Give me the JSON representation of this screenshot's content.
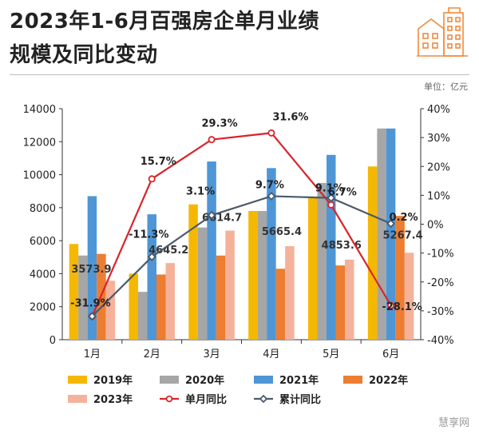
{
  "title_line1": "2023年1-6月百强房企单月业绩",
  "title_line2": "规模及同比变动",
  "unit_label": "单位：亿元",
  "watermark": "慧享网",
  "logo_icon": "building-icon",
  "chart_data": {
    "type": "bar",
    "categories": [
      "1月",
      "2月",
      "3月",
      "4月",
      "5月",
      "6月"
    ],
    "series": [
      {
        "name": "2019年",
        "color": "#f5b800",
        "values": [
          5800,
          4000,
          8200,
          7800,
          8600,
          10500
        ]
      },
      {
        "name": "2020年",
        "color": "#a6a6a6",
        "values": [
          5100,
          2900,
          6800,
          7800,
          9500,
          12800
        ]
      },
      {
        "name": "2021年",
        "color": "#4e96d6",
        "values": [
          8700,
          7600,
          10800,
          10400,
          11200,
          12800
        ]
      },
      {
        "name": "2022年",
        "color": "#ec7d31",
        "values": [
          5200,
          3950,
          5100,
          4300,
          4500,
          7500
        ]
      },
      {
        "name": "2023年",
        "color": "#f5b29a",
        "values": [
          3573.9,
          4645.2,
          6614.7,
          5665.4,
          4853.6,
          5267.4
        ]
      }
    ],
    "bar_value_labels": [
      "3573.9",
      "4645.2",
      "6614.7",
      "5665.4",
      "4853.6",
      "5267.4"
    ],
    "lines": [
      {
        "name": "单月同比",
        "color": "#d9242a",
        "values": [
          -31.9,
          15.7,
          29.3,
          31.6,
          6.7,
          -28.1
        ],
        "labels": [
          "-31.9%",
          "15.7%",
          "29.3%",
          "31.6%",
          "6.7%",
          "-28.1%"
        ]
      },
      {
        "name": "累计同比",
        "color": "#4a5a6a",
        "values": [
          -31.9,
          -11.3,
          3.1,
          9.7,
          9.1,
          0.2
        ],
        "labels": [
          "",
          "-11.3%",
          "3.1%",
          "9.7%",
          "9.1%",
          "0.2%"
        ]
      }
    ],
    "y_left": {
      "min": 0,
      "max": 14000,
      "ticks": [
        "0",
        "2000",
        "4000",
        "6000",
        "8000",
        "10000",
        "12000",
        "14000"
      ]
    },
    "y_right": {
      "min": -40,
      "max": 40,
      "ticks": [
        "-40%",
        "-30%",
        "-20%",
        "-10%",
        "0%",
        "10%",
        "20%",
        "30%",
        "40%"
      ]
    },
    "legend": [
      "2019年",
      "2020年",
      "2021年",
      "2022年",
      "2023年",
      "单月同比",
      "累计同比"
    ]
  }
}
